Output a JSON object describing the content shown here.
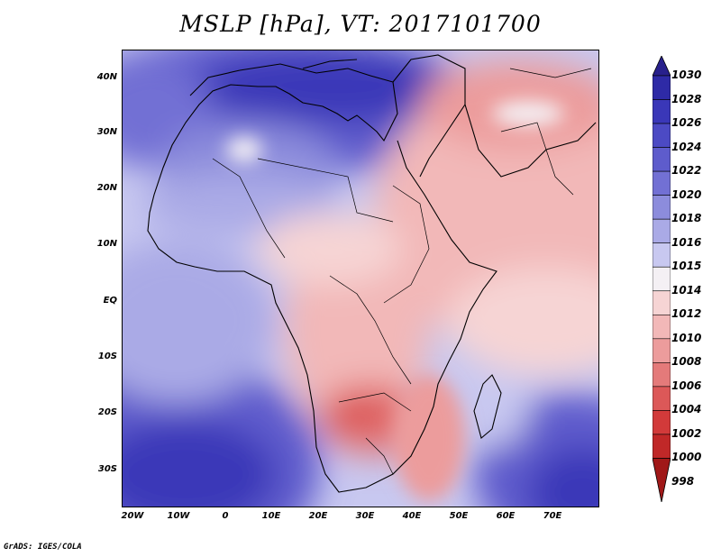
{
  "title": "MSLP [hPa], VT: 2017101700",
  "credit": "GrADS: IGES/COLA",
  "lat_labels": [
    "40N",
    "30N",
    "20N",
    "10N",
    "EQ",
    "10S",
    "20S",
    "30S"
  ],
  "lon_labels": [
    "20W",
    "10W",
    "0",
    "10E",
    "20E",
    "30E",
    "40E",
    "50E",
    "60E",
    "70E"
  ],
  "legend": {
    "levels": [
      "1030",
      "1028",
      "1026",
      "1024",
      "1022",
      "1020",
      "1018",
      "1016",
      "1015",
      "1014",
      "1012",
      "1010",
      "1008",
      "1006",
      "1004",
      "1002",
      "1000",
      "998"
    ],
    "colors": [
      "#28208c",
      "#2e2aa6",
      "#3a37b8",
      "#4c4ac4",
      "#5e5ccc",
      "#7270d4",
      "#8c8cdc",
      "#aaaae6",
      "#c8c8f0",
      "#f4f0f4",
      "#f6d4d4",
      "#f2b8b8",
      "#ec9c9c",
      "#e47a7a",
      "#dc5858",
      "#d23a3a",
      "#c02828",
      "#a01818"
    ]
  },
  "colors": {
    "border": "#000000",
    "background": "#ffffff"
  }
}
